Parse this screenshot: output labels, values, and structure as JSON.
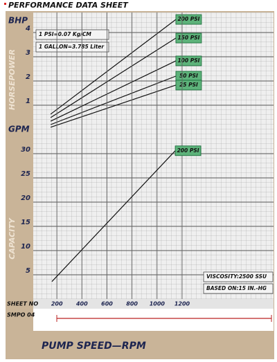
{
  "title": "PERFORMANCE DATA SHEET",
  "sheet": {
    "label": "SHEET NO",
    "number": "SMPO 04"
  },
  "chart_data": [
    {
      "type": "line",
      "y_unit": "BHP",
      "ylabel": "HORSEPOWER",
      "x": [
        150,
        1150
      ],
      "xlim": [
        0,
        1930
      ],
      "ylim": [
        0,
        4.8
      ],
      "yticks": [
        1,
        2,
        3,
        4
      ],
      "annotations": [
        "1 PSI=0.07 Kg/CM",
        "1 GALLON=3.785 Liter"
      ],
      "series": [
        {
          "name": "200 PSI",
          "color": "#111111",
          "values": [
            0.63,
            4.54
          ]
        },
        {
          "name": "150 PSI",
          "color": "#111111",
          "values": [
            0.49,
            3.77
          ]
        },
        {
          "name": "100 PSI",
          "color": "#111111",
          "values": [
            0.34,
            2.83
          ]
        },
        {
          "name": "50 PSI",
          "color": "#111111",
          "values": [
            0.2,
            2.2
          ]
        },
        {
          "name": "25 PSI",
          "color": "#111111",
          "values": [
            0.09,
            1.83
          ]
        }
      ]
    },
    {
      "type": "line",
      "y_unit": "GPM",
      "ylabel": "CAPACITY",
      "x": [
        160,
        1145
      ],
      "xlim": [
        0,
        1930
      ],
      "xticks": [
        200,
        400,
        600,
        800,
        1000,
        1200
      ],
      "xlabel": "PUMP SPEED—RPM",
      "ylim": [
        0,
        33
      ],
      "yticks": [
        5,
        10,
        15,
        20,
        25,
        30
      ],
      "annotations": [
        "VISCOSITY:2500 SSU",
        "BASED ON:15 IN.-HG"
      ],
      "series": [
        {
          "name": "200 PSI",
          "color": "#111111",
          "values": [
            3.6,
            30.6
          ]
        }
      ]
    }
  ]
}
